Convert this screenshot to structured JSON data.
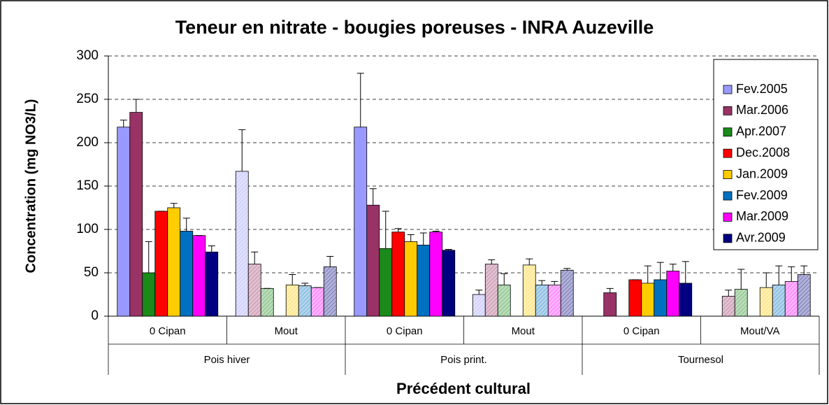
{
  "chart_data": {
    "type": "bar",
    "title": "Teneur en nitrate - bougies poreuses - INRA Auzeville",
    "y_label": "Concentration (mg NO3/L)",
    "x_label": "Précédent cultural",
    "categories": [
      "0 Cipan",
      "Mout",
      "0 Cipan",
      "Mout",
      "0 Cipan",
      "Mout/VA"
    ],
    "groups": [
      "Pois hiver",
      "Pois print.",
      "Tournesol"
    ],
    "series": [
      {
        "name": "Fev.2005",
        "color": "#9999ff",
        "values": [
          218,
          167,
          218,
          25,
          null,
          null
        ],
        "errors": [
          8,
          48,
          62,
          5,
          null,
          null
        ]
      },
      {
        "name": "Mar.2006",
        "color": "#993366",
        "values": [
          235,
          60,
          128,
          60,
          27,
          23
        ],
        "errors": [
          15,
          14,
          19,
          5,
          5,
          7
        ]
      },
      {
        "name": "Apr.2007",
        "color": "#1a8a1a",
        "values": [
          50,
          32,
          78,
          36,
          null,
          31
        ],
        "errors": [
          36,
          0,
          43,
          13,
          null,
          23
        ]
      },
      {
        "name": "Dec.2008",
        "color": "#ff0000",
        "values": [
          121,
          null,
          97,
          null,
          42,
          null
        ],
        "errors": [
          0,
          null,
          4,
          null,
          0,
          null
        ]
      },
      {
        "name": "Jan.2009",
        "color": "#ffcc00",
        "values": [
          125,
          36,
          86,
          59,
          38,
          33
        ],
        "errors": [
          5,
          12,
          8,
          7,
          20,
          17
        ]
      },
      {
        "name": "Fev.2009",
        "color": "#0070c0",
        "values": [
          98,
          35,
          82,
          36,
          42,
          36
        ],
        "errors": [
          15,
          3,
          14,
          5,
          20,
          22
        ]
      },
      {
        "name": "Mar.2009",
        "color": "#ff00ff",
        "values": [
          93,
          33,
          97,
          36,
          52,
          40
        ],
        "errors": [
          0,
          0,
          1,
          4,
          8,
          17
        ]
      },
      {
        "name": "Avr.2009",
        "color": "#000080",
        "values": [
          74,
          57,
          76,
          53,
          38,
          48
        ],
        "errors": [
          7,
          12,
          1,
          2,
          25,
          10
        ]
      }
    ],
    "ylim": [
      0,
      300
    ],
    "yticks": [
      0,
      50,
      100,
      150,
      200,
      250,
      300
    ],
    "grid": true,
    "legend": "right"
  }
}
